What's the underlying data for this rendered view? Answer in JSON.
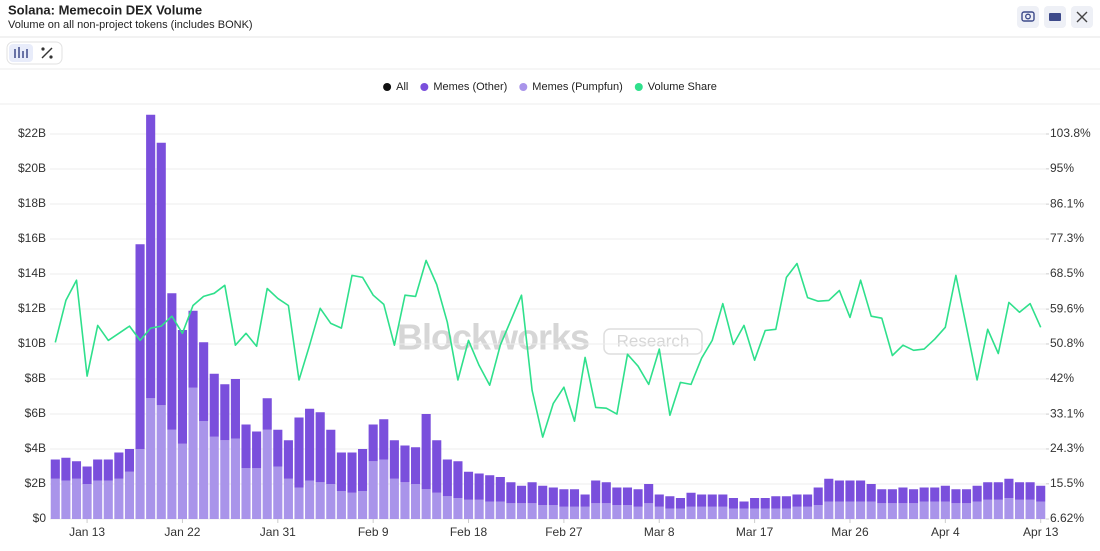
{
  "chart_data": {
    "type": "bar",
    "title": "Solana: Memecoin DEX Volume",
    "subtitle": "Volume on all non-project tokens (includes BONK)",
    "watermark": [
      "Blockworks",
      "Research"
    ],
    "categories": [
      null,
      null,
      null,
      "Jan 13",
      null,
      null,
      null,
      null,
      null,
      null,
      null,
      null,
      "Jan 22",
      null,
      null,
      null,
      null,
      null,
      null,
      null,
      null,
      "Jan 31",
      null,
      null,
      null,
      null,
      null,
      null,
      null,
      null,
      "Feb 9",
      null,
      null,
      null,
      null,
      null,
      null,
      null,
      null,
      "Feb 18",
      null,
      null,
      null,
      null,
      null,
      null,
      null,
      null,
      "Feb 27",
      null,
      null,
      null,
      null,
      null,
      null,
      null,
      null,
      "Mar 8",
      null,
      null,
      null,
      null,
      null,
      null,
      null,
      null,
      "Mar 17",
      null,
      null,
      null,
      null,
      null,
      null,
      null,
      null,
      "Mar 26",
      null,
      null,
      null,
      null,
      null,
      null,
      null,
      null,
      "Apr 4",
      null,
      null,
      null,
      null,
      null,
      null,
      null,
      null,
      "Apr 13"
    ],
    "series": [
      {
        "name": "All",
        "color": "#111111"
      },
      {
        "name": "Memes (Other)",
        "color": "#7a4fdc",
        "values": [
          1.1,
          1.3,
          1.0,
          1.0,
          1.2,
          1.2,
          1.5,
          1.3,
          11.7,
          16.2,
          15.0,
          7.8,
          6.5,
          4.4,
          4.5,
          3.6,
          3.2,
          3.4,
          2.5,
          2.1,
          1.8,
          2.1,
          2.2,
          4.0,
          4.1,
          4.0,
          3.1,
          2.2,
          2.3,
          2.4,
          2.1,
          2.3,
          2.2,
          2.1,
          2.1,
          4.3,
          3.0,
          2.1,
          2.1,
          1.6,
          1.5,
          1.5,
          1.4,
          1.2,
          1.0,
          1.2,
          1.1,
          1.0,
          1.0,
          1.0,
          0.7,
          1.3,
          1.2,
          1.0,
          1.0,
          1.0,
          1.1,
          0.7,
          0.7,
          0.6,
          0.8,
          0.7,
          0.7,
          0.7,
          0.6,
          0.4,
          0.6,
          0.6,
          0.7,
          0.7,
          0.7,
          0.7,
          1.0,
          1.3,
          1.2,
          1.2,
          1.2,
          1.0,
          0.8,
          0.8,
          0.9,
          0.8,
          0.8,
          0.8,
          0.9,
          0.8,
          0.8,
          0.9,
          1.0,
          1.0,
          1.1,
          1.0,
          1.0,
          0.9
        ]
      },
      {
        "name": "Memes (Pumpfun)",
        "color": "#a994ea",
        "values": [
          2.3,
          2.2,
          2.3,
          2.0,
          2.2,
          2.2,
          2.3,
          2.7,
          4.0,
          6.9,
          6.5,
          5.1,
          4.3,
          7.5,
          5.6,
          4.7,
          4.5,
          4.6,
          2.9,
          2.9,
          5.1,
          3.0,
          2.3,
          1.8,
          2.2,
          2.1,
          2.0,
          1.6,
          1.5,
          1.6,
          3.3,
          3.4,
          2.3,
          2.1,
          2.0,
          1.7,
          1.5,
          1.3,
          1.2,
          1.1,
          1.1,
          1.0,
          1.0,
          0.9,
          0.9,
          0.9,
          0.8,
          0.8,
          0.7,
          0.7,
          0.7,
          0.9,
          0.9,
          0.8,
          0.8,
          0.7,
          0.9,
          0.7,
          0.6,
          0.6,
          0.7,
          0.7,
          0.7,
          0.7,
          0.6,
          0.6,
          0.6,
          0.6,
          0.6,
          0.6,
          0.7,
          0.7,
          0.8,
          1.0,
          1.0,
          1.0,
          1.0,
          1.0,
          0.9,
          0.9,
          0.9,
          0.9,
          1.0,
          1.0,
          1.0,
          0.9,
          0.9,
          1.0,
          1.1,
          1.1,
          1.2,
          1.1,
          1.1,
          1.0
        ]
      },
      {
        "name": "Volume Share",
        "color": "#2fe08c",
        "axis": "y2",
        "type": "line",
        "values": [
          51.2,
          61.8,
          66.9,
          42.7,
          55.5,
          51.7,
          53.5,
          55.3,
          51.7,
          54.8,
          55.3,
          57.8,
          53.5,
          60.5,
          62.8,
          63.6,
          65.6,
          50.5,
          53.5,
          50.2,
          64.8,
          62.3,
          60.5,
          41.7,
          50.5,
          59.8,
          56.0,
          54.8,
          68.1,
          67.6,
          63.1,
          60.8,
          50.5,
          63.1,
          62.8,
          71.9,
          65.8,
          56.3,
          41.7,
          51.7,
          45.4,
          40.4,
          50.5,
          56.8,
          63.1,
          39.1,
          27.3,
          35.8,
          39.9,
          31.3,
          47.4,
          34.8,
          34.6,
          33.1,
          48.2,
          45.2,
          40.6,
          49.5,
          32.8,
          41.1,
          40.6,
          47.2,
          51.7,
          61.0,
          50.7,
          55.5,
          46.7,
          54.2,
          54.5,
          67.6,
          71.1,
          62.5,
          61.6,
          61.8,
          64.3,
          57.5,
          66.9,
          57.8,
          57.3,
          47.9,
          50.5,
          49.2,
          49.5,
          52.0,
          55.0,
          68.1,
          55.0,
          41.7,
          54.5,
          48.4,
          61.3,
          58.8,
          61.0,
          55.0
        ]
      }
    ],
    "ylim": [
      0,
      22
    ],
    "yticks": [
      {
        "value": 0,
        "label": "$0"
      },
      {
        "value": 2,
        "label": "$2B"
      },
      {
        "value": 4,
        "label": "$4B"
      },
      {
        "value": 6,
        "label": "$6B"
      },
      {
        "value": 8,
        "label": "$8B"
      },
      {
        "value": 10,
        "label": "$10B"
      },
      {
        "value": 12,
        "label": "$12B"
      },
      {
        "value": 14,
        "label": "$14B"
      },
      {
        "value": 16,
        "label": "$16B"
      },
      {
        "value": 18,
        "label": "$18B"
      },
      {
        "value": 20,
        "label": "$20B"
      },
      {
        "value": 22,
        "label": "$22B"
      }
    ],
    "y2lim": [
      6.62,
      103.8
    ],
    "y2ticks": [
      {
        "value": 6.62,
        "label": "6.62%"
      },
      {
        "value": 15.5,
        "label": "15.5%"
      },
      {
        "value": 24.3,
        "label": "24.3%"
      },
      {
        "value": 33.1,
        "label": "33.1%"
      },
      {
        "value": 42,
        "label": "42%"
      },
      {
        "value": 50.8,
        "label": "50.8%"
      },
      {
        "value": 59.6,
        "label": "59.6%"
      },
      {
        "value": 68.5,
        "label": "68.5%"
      },
      {
        "value": 77.3,
        "label": "77.3%"
      },
      {
        "value": 86.1,
        "label": "86.1%"
      },
      {
        "value": 95,
        "label": "95%"
      },
      {
        "value": 103.8,
        "label": "103.8%"
      }
    ],
    "stacked": true,
    "grid": true,
    "legend": "top"
  }
}
